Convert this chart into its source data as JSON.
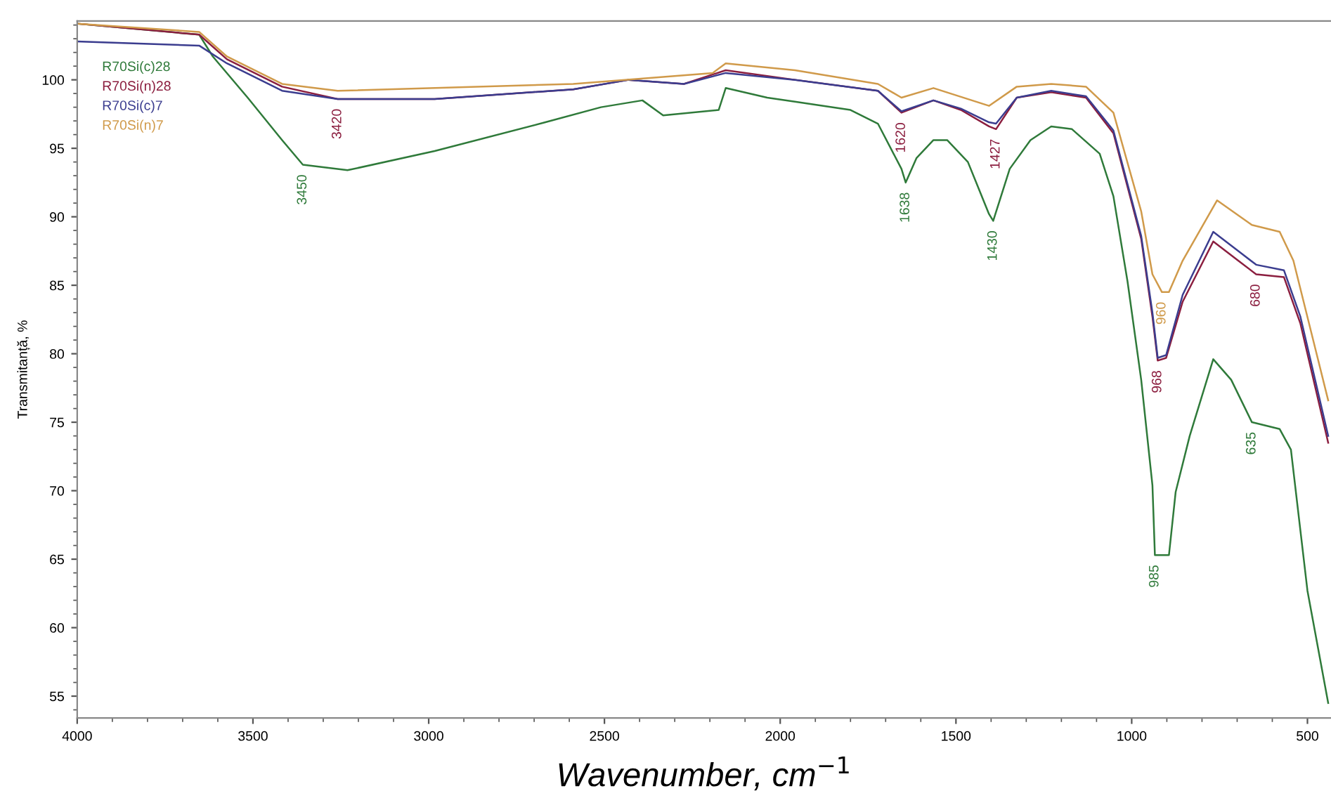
{
  "chart_data": {
    "type": "line",
    "xlabel": "Wavenumber, cm$^{−1}$",
    "ylabel": "Transmitanță, %",
    "xlim": [
      4000,
      433
    ],
    "ylim": [
      53.4,
      104.3
    ],
    "xticks": [
      4000,
      3500,
      3000,
      2500,
      2000,
      1500,
      1000,
      500
    ],
    "yticks": [
      55,
      60,
      65,
      70,
      75,
      80,
      85,
      90,
      95,
      100
    ],
    "grid": false,
    "legend": "top left",
    "marker": "none",
    "line_style": "solid",
    "series": [
      {
        "name": "R70Si(c)28",
        "color": "#2f7a3a",
        "x": [
          4000,
          3653,
          3614,
          3515,
          3417,
          3358,
          3231,
          2983,
          2668,
          2510,
          2392,
          2333,
          2175,
          2155,
          2037,
          1958,
          1800,
          1722,
          1655,
          1643,
          1612,
          1564,
          1525,
          1466,
          1406,
          1394,
          1347,
          1288,
          1229,
          1170,
          1091,
          1052,
          1012,
          973,
          941,
          934,
          894,
          875,
          835,
          768,
          717,
          658,
          579,
          547,
          500,
          441
        ],
        "values": [
          104.1,
          103.3,
          101.7,
          98.7,
          95.6,
          93.8,
          93.4,
          94.8,
          96.9,
          98.0,
          98.5,
          97.4,
          97.8,
          99.4,
          98.7,
          98.4,
          97.8,
          96.8,
          93.5,
          92.5,
          94.3,
          95.6,
          95.6,
          94.0,
          90.2,
          89.7,
          93.5,
          95.6,
          96.6,
          96.4,
          94.6,
          91.5,
          85.3,
          78.1,
          70.4,
          65.3,
          65.3,
          69.9,
          74.0,
          79.6,
          78.1,
          75.0,
          74.5,
          73.0,
          62.7,
          54.5
        ]
      },
      {
        "name": "R70Si(n)28",
        "color": "#8b1e3f",
        "x": [
          4000,
          3653,
          3574,
          3417,
          3259,
          2983,
          2589,
          2431,
          2274,
          2155,
          1958,
          1722,
          1655,
          1564,
          1486,
          1406,
          1386,
          1327,
          1229,
          1130,
          1052,
          973,
          941,
          926,
          902,
          855,
          768,
          697,
          646,
          567,
          520,
          441
        ],
        "values": [
          104.1,
          103.3,
          101.5,
          99.5,
          98.6,
          98.6,
          99.3,
          100.0,
          99.7,
          100.7,
          100.0,
          99.2,
          97.6,
          98.5,
          97.8,
          96.6,
          96.4,
          98.7,
          99.1,
          98.7,
          96.1,
          88.4,
          82.7,
          79.5,
          79.7,
          83.8,
          88.2,
          86.8,
          85.8,
          85.6,
          82.2,
          73.5
        ]
      },
      {
        "name": "R70Si(c)7",
        "color": "#3b3d8f",
        "x": [
          4000,
          3653,
          3574,
          3417,
          3259,
          2983,
          2589,
          2431,
          2274,
          2155,
          1958,
          1722,
          1655,
          1564,
          1486,
          1406,
          1386,
          1327,
          1229,
          1130,
          1052,
          973,
          941,
          926,
          902,
          855,
          768,
          697,
          646,
          567,
          520,
          441
        ],
        "values": [
          102.8,
          102.5,
          101.2,
          99.2,
          98.6,
          98.6,
          99.3,
          100.0,
          99.7,
          100.5,
          100.0,
          99.2,
          97.7,
          98.5,
          97.9,
          96.9,
          96.8,
          98.7,
          99.2,
          98.8,
          96.3,
          88.6,
          83.0,
          79.7,
          79.9,
          84.3,
          88.9,
          87.5,
          86.5,
          86.1,
          82.7,
          74.0
        ]
      },
      {
        "name": "R70Si(n)7",
        "color": "#d09a4a",
        "x": [
          4000,
          3653,
          3574,
          3417,
          3259,
          2589,
          2192,
          2155,
          1958,
          1722,
          1655,
          1564,
          1406,
          1327,
          1229,
          1130,
          1052,
          973,
          941,
          914,
          894,
          855,
          757,
          658,
          579,
          540,
          441
        ],
        "values": [
          104.1,
          103.5,
          101.7,
          99.7,
          99.2,
          99.7,
          100.5,
          101.2,
          100.7,
          99.7,
          98.7,
          99.4,
          98.1,
          99.5,
          99.7,
          99.5,
          97.6,
          90.4,
          85.8,
          84.5,
          84.5,
          86.8,
          91.2,
          89.4,
          88.9,
          86.8,
          76.6
        ]
      }
    ],
    "annotations": [
      {
        "text": "3450",
        "x": 3358,
        "y": 93.8
      },
      {
        "text": "3420",
        "x": 3259,
        "y": 98.6
      },
      {
        "text": "1638",
        "x": 1643,
        "y": 92.5
      },
      {
        "text": "1620",
        "x": 1655,
        "y": 97.6
      },
      {
        "text": "1430",
        "x": 1394,
        "y": 89.7
      },
      {
        "text": "1427",
        "x": 1386,
        "y": 96.4
      },
      {
        "text": "960",
        "x": 914,
        "y": 84.5
      },
      {
        "text": "968",
        "x": 926,
        "y": 79.5
      },
      {
        "text": "680",
        "x": 646,
        "y": 85.8
      },
      {
        "text": "985",
        "x": 934,
        "y": 65.3
      },
      {
        "text": "635",
        "x": 658,
        "y": 75.0
      }
    ]
  }
}
